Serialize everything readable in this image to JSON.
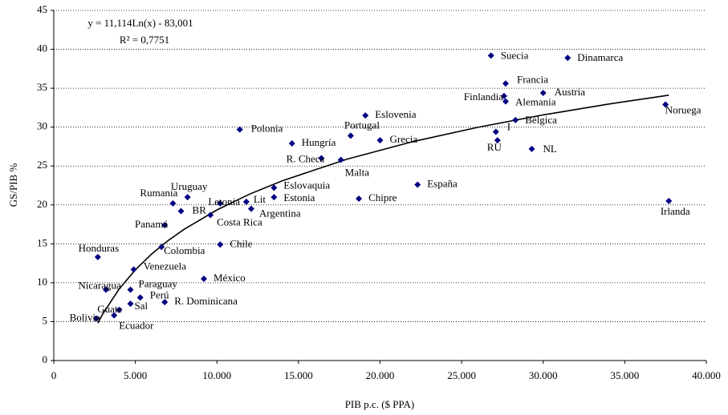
{
  "chart_data": {
    "type": "scatter",
    "x_label": "PIB p.c. ($ PPA)",
    "y_label": "GS/PIB %",
    "equation": "y = 11,114Ln(x) - 83,001",
    "r_squared": "R² = 0,7751",
    "color": "#000080",
    "grid": true,
    "xlim": [
      0,
      40000
    ],
    "ylim": [
      0,
      45
    ],
    "xticks": [
      0,
      {
        "value": 5000,
        "label": "5.000"
      },
      {
        "value": 10000,
        "label": "10.000"
      },
      {
        "value": 15000,
        "label": "15.000"
      },
      {
        "value": 20000,
        "label": "20.000"
      },
      {
        "value": 25000,
        "label": "25.000"
      },
      {
        "value": 30000,
        "label": "30.000"
      },
      {
        "value": 35000,
        "label": "35.000"
      },
      {
        "value": 40000,
        "label": "40.000"
      }
    ],
    "yticks": [
      0,
      5,
      10,
      15,
      20,
      25,
      30,
      35,
      40,
      45
    ],
    "labels": [
      "Suecia",
      "Dinamarca",
      "Francia",
      "Austria",
      "Finlandia",
      "Alemania",
      "Noruega",
      "Bélgica",
      "I",
      "RU",
      "NL",
      "Irlanda",
      "Eslovenia",
      "Portugal",
      "Grecia",
      "Polonia",
      "Hungría",
      "R. Checa",
      "Malta",
      "España",
      "Chipre",
      "Eslovaquia",
      "Estonia",
      "Lit",
      "Letonia",
      "Argentina",
      "Uruguay",
      "Rumania",
      "BR",
      "Costa Rica",
      "Panamá",
      "Colombia",
      "Chile",
      "Honduras",
      "Venezuela",
      "México",
      "Nicaragua",
      "Paraguay",
      "Perú",
      "R. Dominicana",
      "Guate",
      "Sal",
      "Bolivia",
      "Ecuador"
    ],
    "x": [
      26800,
      31500,
      27700,
      30000,
      27600,
      27700,
      37500,
      28300,
      27100,
      27200,
      29300,
      37700,
      19100,
      18200,
      20000,
      11400,
      14600,
      16400,
      17600,
      22300,
      18700,
      13500,
      13500,
      11800,
      10200,
      12100,
      8200,
      7300,
      7800,
      9600,
      6800,
      6600,
      10200,
      2700,
      4900,
      9200,
      3200,
      4700,
      5300,
      6800,
      4000,
      4700,
      2600,
      3700
    ],
    "values": [
      39.2,
      38.9,
      35.6,
      34.4,
      34.0,
      33.3,
      32.9,
      30.9,
      29.4,
      28.3,
      27.2,
      20.5,
      31.5,
      28.9,
      28.3,
      29.7,
      27.9,
      26.0,
      25.8,
      22.6,
      20.8,
      22.2,
      21.0,
      20.4,
      20.2,
      19.5,
      21.0,
      20.2,
      19.2,
      18.7,
      17.4,
      14.6,
      14.9,
      13.3,
      11.7,
      10.5,
      9.1,
      9.1,
      8.1,
      7.5,
      6.5,
      7.3,
      5.4,
      5.8
    ],
    "trendline": {
      "x": [
        2700,
        3000,
        4000,
        5000,
        6000,
        7000,
        8000,
        10000,
        12000,
        14000,
        18000,
        22000,
        26000,
        30000,
        34000,
        37700
      ],
      "values": [
        4.81,
        5.98,
        9.18,
        11.66,
        13.69,
        15.4,
        16.88,
        19.36,
        21.39,
        23.1,
        25.9,
        28.13,
        29.98,
        31.57,
        32.96,
        34.11
      ]
    }
  }
}
